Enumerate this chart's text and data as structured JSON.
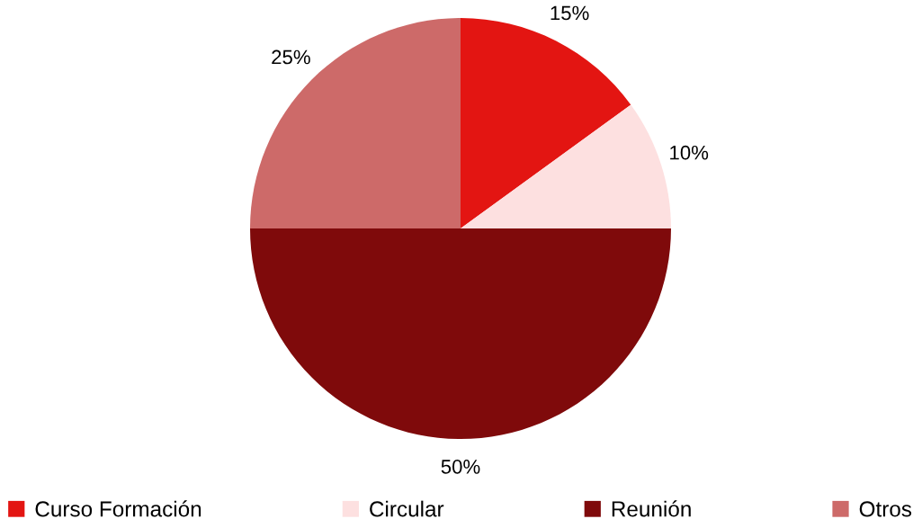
{
  "chart_data": {
    "type": "pie",
    "categories": [
      "Curso Formación",
      "Circular",
      "Reunión",
      "Otros"
    ],
    "values": [
      15,
      10,
      50,
      25
    ],
    "colors": [
      "#e31512",
      "#fde0e0",
      "#7f0a0b",
      "#cd6a69"
    ],
    "value_labels": [
      "15%",
      "10%",
      "50%",
      "25%"
    ],
    "legend": "bottom"
  }
}
